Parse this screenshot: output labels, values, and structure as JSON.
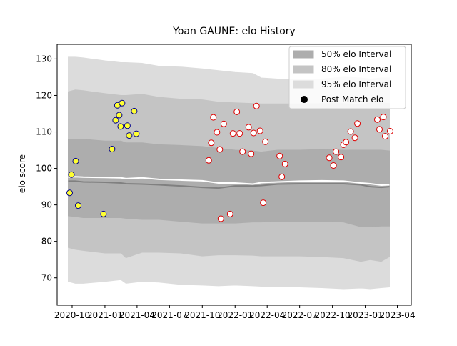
{
  "chart_data": {
    "type": "scatter",
    "title": "Yoan GAUNE: elo History",
    "xlabel": "",
    "ylabel": "elo score",
    "xlim": [
      "2020-08-20",
      "2023-05-10"
    ],
    "ylim": [
      62.5,
      134
    ],
    "grid": false,
    "legend_position": "top-right",
    "x_ticks": [
      "2020-10",
      "2021-01",
      "2021-04",
      "2021-07",
      "2021-10",
      "2022-01",
      "2022-04",
      "2022-07",
      "2022-10",
      "2023-01",
      "2023-04"
    ],
    "y_ticks": [
      70,
      80,
      90,
      100,
      110,
      120,
      130
    ],
    "colors": {
      "band95": "#dcdcdc",
      "band80": "#c4c4c4",
      "band50": "#adadad",
      "median": "#808080",
      "mean_line": "#ffffff",
      "first_season_marker": "#ffff33",
      "first_season_edge": "#00008b",
      "second_season_marker": "#ffffff",
      "second_season_edge": "#dd0000"
    },
    "legend": [
      {
        "label": "50% elo Interval",
        "kind": "band50"
      },
      {
        "label": "80% elo Interval",
        "kind": "band80"
      },
      {
        "label": "95% elo Interval",
        "kind": "band95"
      },
      {
        "label": "Post Match elo",
        "kind": "marker"
      }
    ],
    "bands": {
      "x": [
        "2020-09-20",
        "2020-10-10",
        "2020-11-01",
        "2021-01-01",
        "2021-02-15",
        "2021-03-01",
        "2021-04-15",
        "2021-06-01",
        "2021-08-01",
        "2021-10-01",
        "2021-11-15",
        "2022-01-01",
        "2022-02-20",
        "2022-03-15",
        "2022-05-01",
        "2022-07-01",
        "2022-09-01",
        "2022-11-01",
        "2022-12-20",
        "2023-01-15",
        "2023-02-15",
        "2023-03-10"
      ],
      "p95": [
        [
          69.0,
          130.5
        ],
        [
          68.5,
          130.5
        ],
        [
          68.5,
          130.3
        ],
        [
          69.0,
          129.5
        ],
        [
          69.5,
          129.0
        ],
        [
          68.5,
          129.0
        ],
        [
          69.0,
          128.8
        ],
        [
          68.8,
          128.0
        ],
        [
          68.2,
          127.8
        ],
        [
          68.0,
          127.3
        ],
        [
          67.8,
          126.8
        ],
        [
          68.0,
          126.3
        ],
        [
          67.8,
          126.0
        ],
        [
          67.7,
          124.8
        ],
        [
          67.5,
          124.5
        ],
        [
          67.5,
          124.5
        ],
        [
          67.3,
          124.5
        ],
        [
          67.0,
          125.0
        ],
        [
          67.2,
          124.8
        ],
        [
          67.0,
          124.5
        ],
        [
          67.3,
          124.8
        ],
        [
          67.5,
          124.8
        ]
      ],
      "p80": [
        [
          78.3,
          121.0
        ],
        [
          77.8,
          121.5
        ],
        [
          77.5,
          121.3
        ],
        [
          76.8,
          120.5
        ],
        [
          76.8,
          120.0
        ],
        [
          75.5,
          120.0
        ],
        [
          77.0,
          120.3
        ],
        [
          77.0,
          119.5
        ],
        [
          76.8,
          119.0
        ],
        [
          76.0,
          118.8
        ],
        [
          76.3,
          118.2
        ],
        [
          76.3,
          118.0
        ],
        [
          76.2,
          117.8
        ],
        [
          76.0,
          117.7
        ],
        [
          76.0,
          117.7
        ],
        [
          76.0,
          117.7
        ],
        [
          75.8,
          117.8
        ],
        [
          75.5,
          117.8
        ],
        [
          74.5,
          117.5
        ],
        [
          75.0,
          118.0
        ],
        [
          74.5,
          118.0
        ],
        [
          75.8,
          117.8
        ]
      ],
      "p50": [
        [
          87.0,
          108.0
        ],
        [
          86.8,
          108.0
        ],
        [
          86.5,
          108.0
        ],
        [
          86.5,
          107.5
        ],
        [
          86.5,
          107.5
        ],
        [
          86.3,
          107.0
        ],
        [
          86.0,
          107.0
        ],
        [
          86.0,
          106.5
        ],
        [
          85.5,
          106.3
        ],
        [
          85.0,
          106.0
        ],
        [
          85.0,
          105.5
        ],
        [
          85.0,
          105.0
        ],
        [
          85.3,
          104.8
        ],
        [
          85.3,
          104.5
        ],
        [
          85.5,
          105.0
        ],
        [
          85.5,
          105.0
        ],
        [
          85.5,
          105.2
        ],
        [
          85.3,
          105.0
        ],
        [
          84.0,
          105.0
        ],
        [
          84.0,
          105.0
        ],
        [
          84.2,
          105.0
        ],
        [
          84.2,
          104.8
        ]
      ],
      "median": [
        96.5,
        96.5,
        96.3,
        96.2,
        96.0,
        95.8,
        95.7,
        95.5,
        95.2,
        94.8,
        94.6,
        95.2,
        95.2,
        95.3,
        95.7,
        95.8,
        95.8,
        95.8,
        95.5,
        95.0,
        94.8,
        95.0
      ],
      "mean": [
        97.6,
        97.7,
        97.6,
        97.5,
        97.4,
        97.2,
        97.4,
        97.0,
        96.8,
        96.6,
        96.0,
        96.0,
        95.7,
        96.1,
        96.3,
        96.5,
        96.6,
        96.5,
        96.0,
        95.8,
        95.4,
        95.5
      ]
    },
    "series": [
      {
        "group": "first",
        "points": [
          [
            "2020-09-24",
            93.3
          ],
          [
            "2020-09-29",
            98.3
          ],
          [
            "2020-10-11",
            102.0
          ],
          [
            "2020-10-18",
            89.8
          ],
          [
            "2020-12-28",
            87.5
          ],
          [
            "2021-01-21",
            105.3
          ],
          [
            "2021-01-31",
            113.2
          ],
          [
            "2021-02-05",
            117.3
          ],
          [
            "2021-02-10",
            114.6
          ],
          [
            "2021-02-14",
            111.5
          ],
          [
            "2021-02-18",
            117.9
          ],
          [
            "2021-03-05",
            111.7
          ],
          [
            "2021-03-10",
            109.0
          ],
          [
            "2021-03-24",
            115.7
          ],
          [
            "2021-03-30",
            109.5
          ]
        ]
      },
      {
        "group": "second",
        "points": [
          [
            "2021-10-19",
            102.2
          ],
          [
            "2021-10-26",
            107.0
          ],
          [
            "2021-11-01",
            114.0
          ],
          [
            "2021-11-11",
            109.9
          ],
          [
            "2021-11-19",
            105.2
          ],
          [
            "2021-11-22",
            86.2
          ],
          [
            "2021-11-30",
            112.2
          ],
          [
            "2021-12-18",
            87.5
          ],
          [
            "2021-12-26",
            109.6
          ],
          [
            "2022-01-06",
            115.5
          ],
          [
            "2022-01-14",
            109.6
          ],
          [
            "2022-01-22",
            104.6
          ],
          [
            "2022-02-08",
            111.3
          ],
          [
            "2022-02-15",
            104.0
          ],
          [
            "2022-02-22",
            109.7
          ],
          [
            "2022-03-02",
            117.1
          ],
          [
            "2022-03-12",
            110.3
          ],
          [
            "2022-03-21",
            90.6
          ],
          [
            "2022-03-27",
            107.3
          ],
          [
            "2022-05-06",
            103.4
          ],
          [
            "2022-05-12",
            97.7
          ],
          [
            "2022-05-21",
            101.2
          ],
          [
            "2022-09-22",
            102.9
          ],
          [
            "2022-10-04",
            100.8
          ],
          [
            "2022-10-11",
            104.6
          ],
          [
            "2022-10-25",
            103.1
          ],
          [
            "2022-11-01",
            106.5
          ],
          [
            "2022-11-08",
            107.2
          ],
          [
            "2022-11-21",
            110.1
          ],
          [
            "2022-12-03",
            108.4
          ],
          [
            "2022-12-10",
            112.3
          ],
          [
            "2023-02-04",
            113.4
          ],
          [
            "2023-02-10",
            110.7
          ],
          [
            "2023-02-21",
            114.1
          ],
          [
            "2023-02-26",
            108.8
          ],
          [
            "2023-03-12",
            110.2
          ]
        ]
      }
    ]
  }
}
